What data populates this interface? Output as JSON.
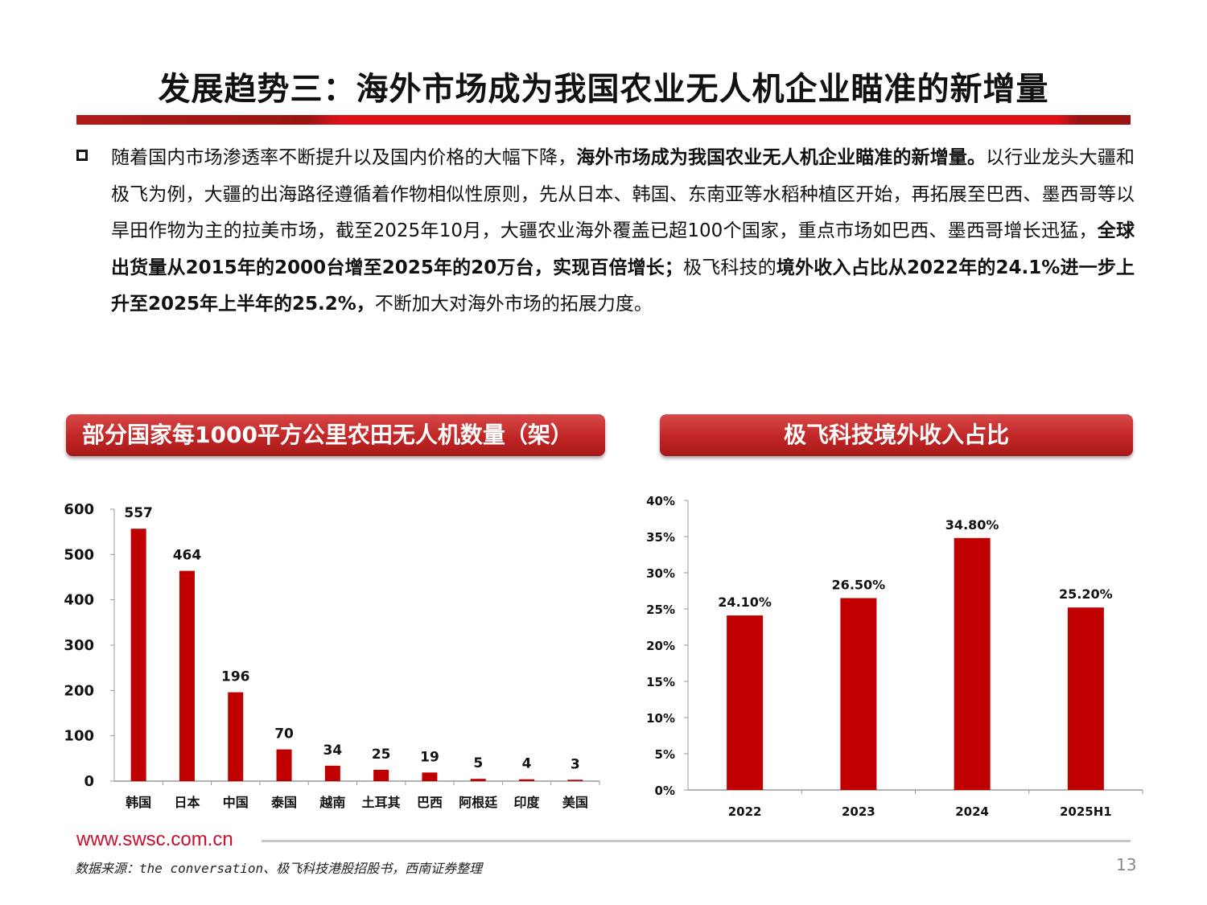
{
  "title": "发展趋势三：海外市场成为我国农业无人机企业瞄准的新增量",
  "paragraph": [
    {
      "text": "随着国内市场渗透率不断提升以及国内价格的大幅下降，",
      "bold": false
    },
    {
      "text": "海外市场成为我国农业无人机企业瞄准的新增量。",
      "bold": true
    },
    {
      "text": "以行业龙头大疆和极飞为例，大疆的出海路径遵循着作物相似性原则，先从日本、韩国、东南亚等水稻种植区开始，再拓展至巴西、墨西哥等以旱田作物为主的拉美市场，截至2025年10月，大疆农业海外覆盖已超100个国家，重点市场如巴西、墨西哥增长迅猛，",
      "bold": false
    },
    {
      "text": "全球出货量从2015年的2000台增至2025年的20万台，实现百倍增长；",
      "bold": true
    },
    {
      "text": "极飞科技的",
      "bold": false
    },
    {
      "text": "境外收入占比从2022年的24.1%进一步上升至2025年上半年的25.2%，",
      "bold": true
    },
    {
      "text": "不断加大对海外市场的拓展力度。",
      "bold": false
    }
  ],
  "colors": {
    "bar": "#c00000",
    "accent": "#c8102e"
  },
  "chart_data": [
    {
      "type": "bar",
      "title": "部分国家每1000平方公里农田无人机数量（架）",
      "categories": [
        "韩国",
        "日本",
        "中国",
        "泰国",
        "越南",
        "土耳其",
        "巴西",
        "阿根廷",
        "印度",
        "美国"
      ],
      "values": [
        557,
        464,
        196,
        70,
        34,
        25,
        19,
        5,
        4,
        3
      ],
      "ylim": [
        0,
        600
      ],
      "yticks": [
        "0",
        "100",
        "200",
        "300",
        "400",
        "500",
        "600"
      ],
      "grid": false,
      "data_labels": true
    },
    {
      "type": "bar",
      "title": "极飞科技境外收入占比",
      "categories": [
        "2022",
        "2023",
        "2024",
        "2025H1"
      ],
      "values": [
        24.1,
        26.5,
        34.8,
        25.2
      ],
      "value_labels": [
        "24.10%",
        "26.50%",
        "34.80%",
        "25.20%"
      ],
      "ylim": [
        0,
        40
      ],
      "yticks": [
        "0%",
        "5%",
        "10%",
        "15%",
        "20%",
        "25%",
        "30%",
        "35%",
        "40%"
      ],
      "grid": false,
      "data_labels": true
    }
  ],
  "footer": {
    "website": "www.swsc.com.cn",
    "source": "数据来源：the conversation、极飞科技港股招股书，西南证券整理",
    "page_number": "13"
  }
}
